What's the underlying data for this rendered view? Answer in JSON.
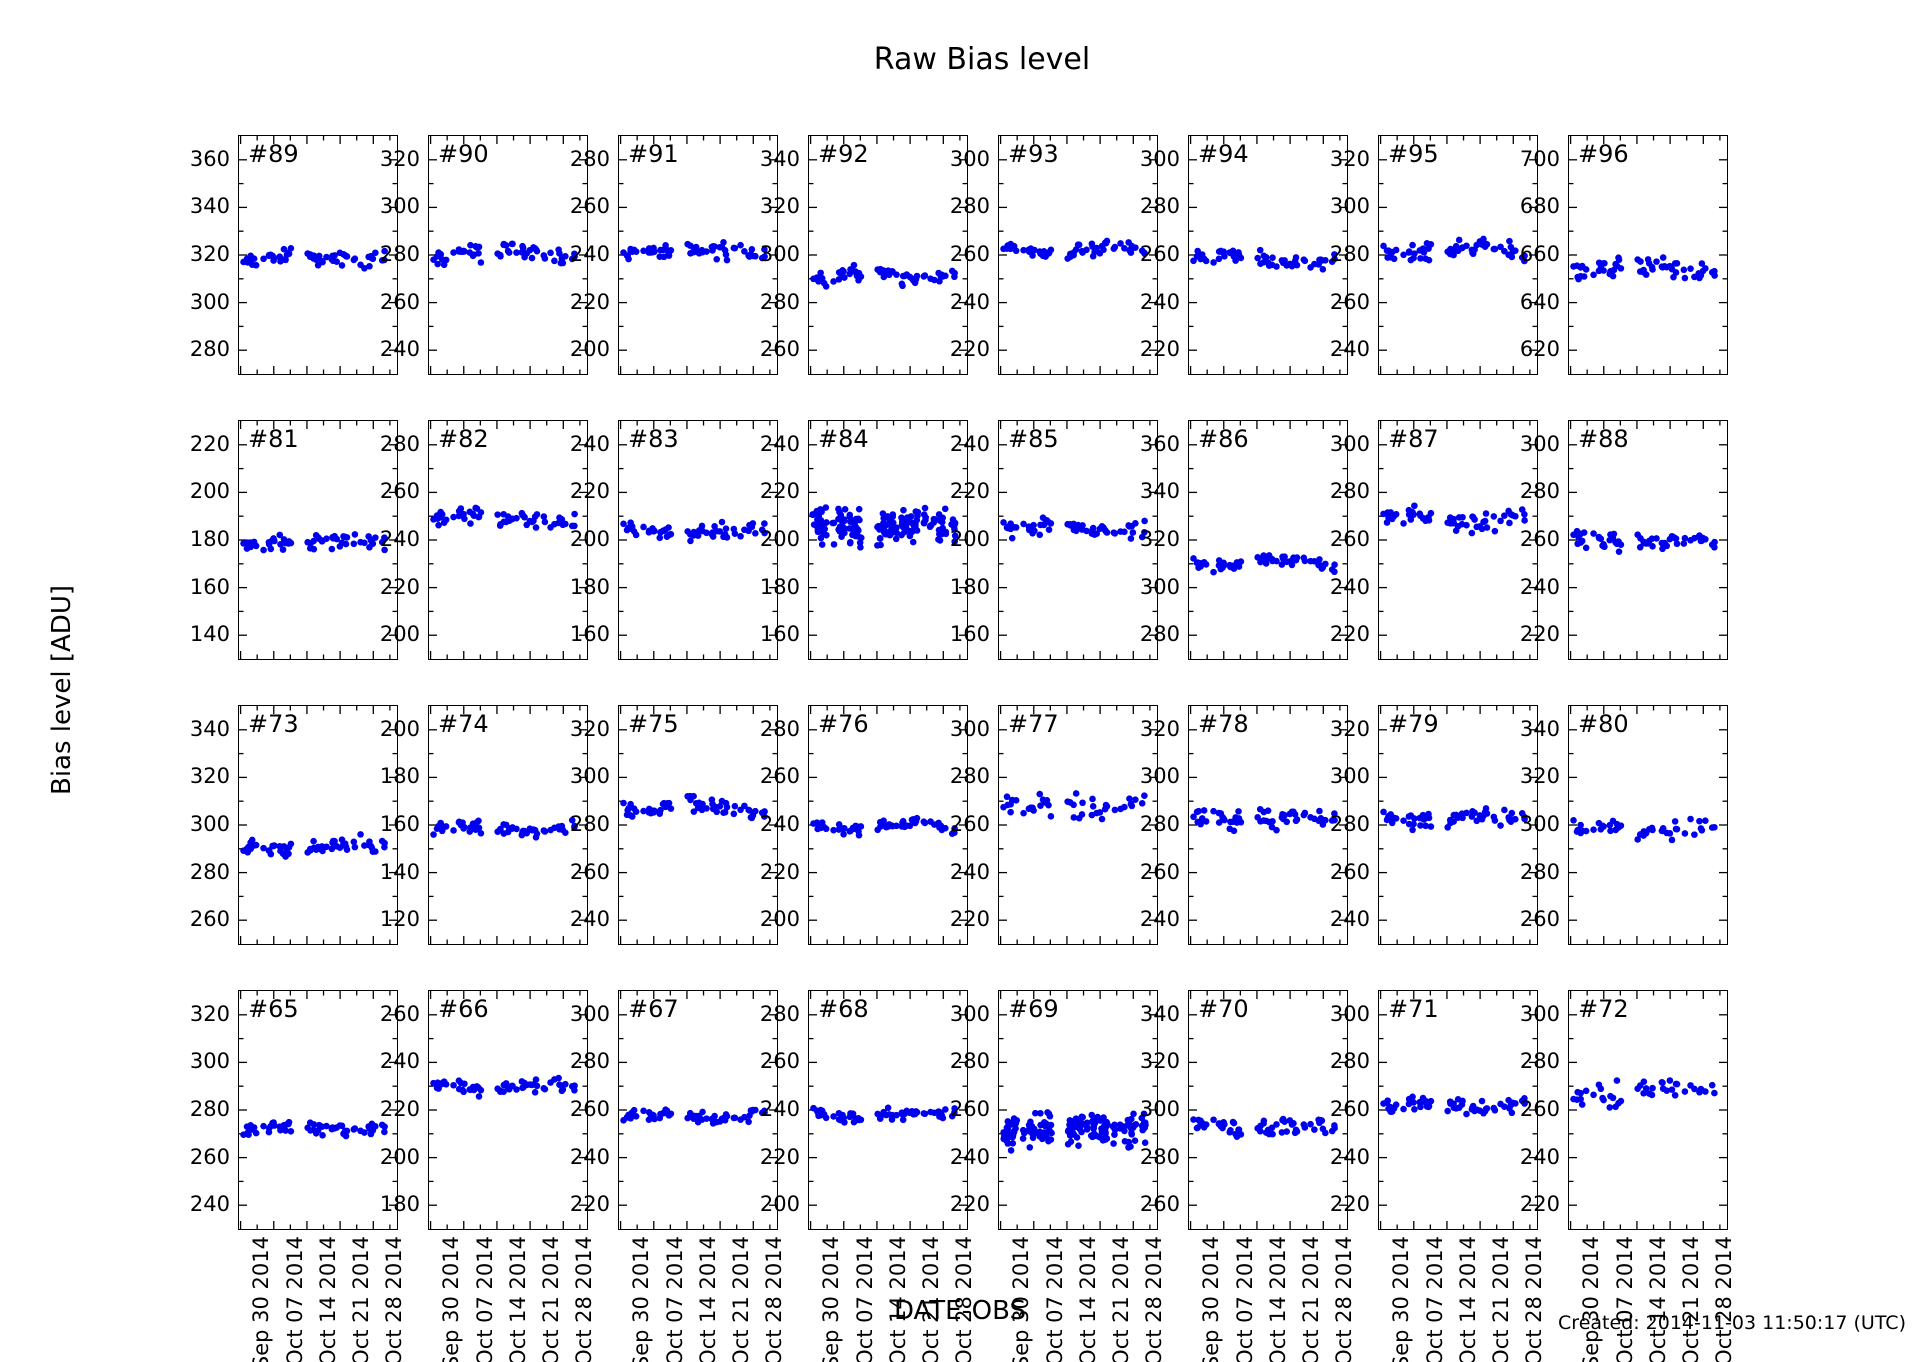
{
  "title": "Raw Bias level",
  "ylabel": "Bias level [ADU]",
  "xlabel": "DATE-OBS",
  "created_note": "Created: 2014-11-03 11:50:17 (UTC)",
  "colors": {
    "point": "#0000ee",
    "axis": "#000000",
    "background": "#ffffff",
    "text": "#000000"
  },
  "x_tick_labels": [
    "Sep 30 2014",
    "Oct 07 2014",
    "Oct 14 2014",
    "Oct 21 2014",
    "Oct 28 2014"
  ],
  "chart_data": {
    "type": "scatter",
    "title": "Raw Bias level",
    "xlabel": "DATE-OBS",
    "ylabel": "Bias level [ADU]",
    "legend": "none",
    "grid": {
      "rows": 4,
      "cols": 8,
      "shared_x": true
    },
    "x_axis": {
      "tick_labels": [
        "Sep 30 2014",
        "Oct 07 2014",
        "Oct 14 2014",
        "Oct 21 2014",
        "Oct 28 2014"
      ],
      "span_days": 33
    },
    "panel_note": "each panel: ~60 bias-level measurements vs observation date; y_ticks are the 5 labeled axis values (20 ADU apart, axis spans ticks +/-10); mean_adu is the band level, sigma_adu the scatter; dense panels show multiple frames per epoch as vertical clumps",
    "panels": [
      {
        "label": "#89",
        "y_ticks": [
          360,
          340,
          320,
          300,
          280
        ],
        "mean_adu": 318.5,
        "sigma_adu": 2.0,
        "n_points": 60,
        "dense": false
      },
      {
        "label": "#90",
        "y_ticks": [
          320,
          300,
          280,
          260,
          240
        ],
        "mean_adu": 281.0,
        "sigma_adu": 2.5,
        "n_points": 60,
        "dense": false
      },
      {
        "label": "#91",
        "y_ticks": [
          280,
          260,
          240,
          220,
          200
        ],
        "mean_adu": 241.0,
        "sigma_adu": 2.0,
        "n_points": 60,
        "dense": false
      },
      {
        "label": "#92",
        "y_ticks": [
          340,
          320,
          300,
          280,
          260
        ],
        "mean_adu": 291.0,
        "sigma_adu": 2.0,
        "n_points": 60,
        "dense": false
      },
      {
        "label": "#93",
        "y_ticks": [
          300,
          280,
          260,
          240,
          220
        ],
        "mean_adu": 262.0,
        "sigma_adu": 1.5,
        "n_points": 60,
        "dense": false
      },
      {
        "label": "#94",
        "y_ticks": [
          300,
          280,
          260,
          240,
          220
        ],
        "mean_adu": 258.0,
        "sigma_adu": 2.0,
        "n_points": 60,
        "dense": false
      },
      {
        "label": "#95",
        "y_ticks": [
          320,
          300,
          280,
          260,
          240
        ],
        "mean_adu": 282.0,
        "sigma_adu": 2.0,
        "n_points": 60,
        "dense": false
      },
      {
        "label": "#96",
        "y_ticks": [
          700,
          680,
          660,
          640,
          620
        ],
        "mean_adu": 654.5,
        "sigma_adu": 2.0,
        "n_points": 60,
        "dense": false
      },
      {
        "label": "#81",
        "y_ticks": [
          220,
          200,
          180,
          160,
          140
        ],
        "mean_adu": 179.0,
        "sigma_adu": 2.0,
        "n_points": 60,
        "dense": false
      },
      {
        "label": "#82",
        "y_ticks": [
          280,
          260,
          240,
          220,
          200
        ],
        "mean_adu": 249.0,
        "sigma_adu": 2.0,
        "n_points": 60,
        "dense": false
      },
      {
        "label": "#83",
        "y_ticks": [
          240,
          220,
          200,
          180,
          160
        ],
        "mean_adu": 203.5,
        "sigma_adu": 2.0,
        "n_points": 60,
        "dense": false
      },
      {
        "label": "#84",
        "y_ticks": [
          240,
          220,
          200,
          180,
          160
        ],
        "mean_adu": 206.0,
        "sigma_adu": 3.5,
        "n_points": 180,
        "dense": true
      },
      {
        "label": "#85",
        "y_ticks": [
          240,
          220,
          200,
          180,
          160
        ],
        "mean_adu": 205.0,
        "sigma_adu": 2.0,
        "n_points": 60,
        "dense": false
      },
      {
        "label": "#86",
        "y_ticks": [
          360,
          340,
          320,
          300,
          280
        ],
        "mean_adu": 310.5,
        "sigma_adu": 1.5,
        "n_points": 60,
        "dense": false
      },
      {
        "label": "#87",
        "y_ticks": [
          300,
          280,
          260,
          240,
          220
        ],
        "mean_adu": 269.0,
        "sigma_adu": 2.5,
        "n_points": 60,
        "dense": false
      },
      {
        "label": "#88",
        "y_ticks": [
          300,
          280,
          260,
          240,
          220
        ],
        "mean_adu": 259.5,
        "sigma_adu": 2.0,
        "n_points": 60,
        "dense": false
      },
      {
        "label": "#73",
        "y_ticks": [
          340,
          320,
          300,
          280,
          260
        ],
        "mean_adu": 291.0,
        "sigma_adu": 2.0,
        "n_points": 60,
        "dense": false
      },
      {
        "label": "#74",
        "y_ticks": [
          200,
          180,
          160,
          140,
          120
        ],
        "mean_adu": 158.5,
        "sigma_adu": 1.5,
        "n_points": 60,
        "dense": false
      },
      {
        "label": "#75",
        "y_ticks": [
          320,
          300,
          280,
          260,
          240
        ],
        "mean_adu": 287.0,
        "sigma_adu": 2.0,
        "n_points": 60,
        "dense": false
      },
      {
        "label": "#76",
        "y_ticks": [
          280,
          260,
          240,
          220,
          200
        ],
        "mean_adu": 239.5,
        "sigma_adu": 1.5,
        "n_points": 60,
        "dense": false
      },
      {
        "label": "#77",
        "y_ticks": [
          300,
          280,
          260,
          240,
          220
        ],
        "mean_adu": 268.0,
        "sigma_adu": 3.0,
        "n_points": 46,
        "dense": false
      },
      {
        "label": "#78",
        "y_ticks": [
          320,
          300,
          280,
          260,
          240
        ],
        "mean_adu": 283.0,
        "sigma_adu": 2.5,
        "n_points": 60,
        "dense": false
      },
      {
        "label": "#79",
        "y_ticks": [
          320,
          300,
          280,
          260,
          240
        ],
        "mean_adu": 283.0,
        "sigma_adu": 2.0,
        "n_points": 60,
        "dense": false
      },
      {
        "label": "#80",
        "y_ticks": [
          340,
          320,
          300,
          280,
          260
        ],
        "mean_adu": 298.5,
        "sigma_adu": 3.0,
        "n_points": 46,
        "dense": false
      },
      {
        "label": "#65",
        "y_ticks": [
          320,
          300,
          280,
          260,
          240
        ],
        "mean_adu": 272.5,
        "sigma_adu": 1.5,
        "n_points": 60,
        "dense": false
      },
      {
        "label": "#66",
        "y_ticks": [
          260,
          240,
          220,
          200,
          180
        ],
        "mean_adu": 229.5,
        "sigma_adu": 1.5,
        "n_points": 60,
        "dense": false
      },
      {
        "label": "#67",
        "y_ticks": [
          300,
          280,
          260,
          240,
          220
        ],
        "mean_adu": 257.5,
        "sigma_adu": 1.5,
        "n_points": 60,
        "dense": false
      },
      {
        "label": "#68",
        "y_ticks": [
          280,
          260,
          240,
          220,
          200
        ],
        "mean_adu": 238.0,
        "sigma_adu": 1.5,
        "n_points": 60,
        "dense": false
      },
      {
        "label": "#69",
        "y_ticks": [
          300,
          280,
          260,
          240,
          220
        ],
        "mean_adu": 252.0,
        "sigma_adu": 3.5,
        "n_points": 180,
        "dense": true
      },
      {
        "label": "#70",
        "y_ticks": [
          340,
          320,
          300,
          280,
          260
        ],
        "mean_adu": 293.0,
        "sigma_adu": 2.0,
        "n_points": 60,
        "dense": false
      },
      {
        "label": "#71",
        "y_ticks": [
          300,
          280,
          260,
          240,
          220
        ],
        "mean_adu": 262.0,
        "sigma_adu": 2.0,
        "n_points": 60,
        "dense": false
      },
      {
        "label": "#72",
        "y_ticks": [
          300,
          280,
          260,
          240,
          220
        ],
        "mean_adu": 268.0,
        "sigma_adu": 3.0,
        "n_points": 46,
        "dense": false
      }
    ]
  }
}
